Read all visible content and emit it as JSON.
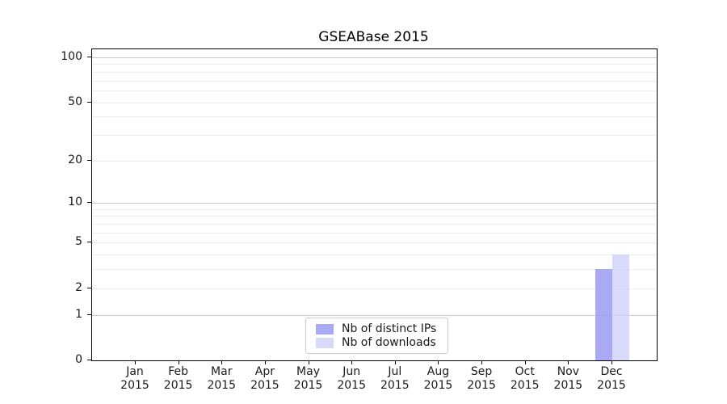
{
  "chart_data": {
    "type": "bar",
    "title": "GSEABase 2015",
    "x_categories": [
      "Jan",
      "Feb",
      "Mar",
      "Apr",
      "May",
      "Jun",
      "Jul",
      "Aug",
      "Sep",
      "Oct",
      "Nov",
      "Dec"
    ],
    "x_year": "2015",
    "y_ticks": [
      0,
      1,
      2,
      5,
      10,
      20,
      50,
      100
    ],
    "y_scale": "log1p",
    "ylim": [
      0,
      100
    ],
    "grid_major": [
      1,
      10,
      100
    ],
    "grid_minor": [
      2,
      3,
      4,
      5,
      6,
      7,
      8,
      9,
      20,
      30,
      40,
      50,
      60,
      70,
      80,
      90
    ],
    "grid": "horizontal",
    "legend_position": "lower center",
    "series": [
      {
        "name": "Nb of distinct IPs",
        "color": "#9a9af2",
        "opacity": 0.85,
        "values": [
          0,
          0,
          0,
          0,
          0,
          0,
          0,
          0,
          0,
          0,
          0,
          3
        ]
      },
      {
        "name": "Nb of downloads",
        "color": "#ccccf8",
        "opacity": 0.75,
        "values": [
          0,
          0,
          0,
          0,
          0,
          0,
          0,
          0,
          0,
          0,
          0,
          4
        ]
      }
    ]
  }
}
